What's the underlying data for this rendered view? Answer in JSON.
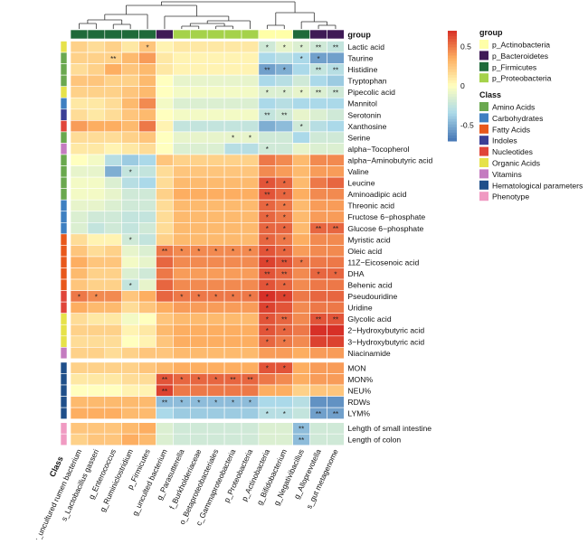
{
  "chart_data": {
    "type": "heatmap",
    "title": "",
    "columns": [
      "s_uncultured rumen bacterium",
      "s_Lactobacillus gasseri",
      "g_Enterococcus",
      "g_Ruminiclostridium",
      "p_Firmicutes",
      "g_unculted bacterium",
      "g_Parasutterella",
      "f_Burkholderiaceae",
      "o_Betaproteobacteriales",
      "c_Gammaproteobacteria",
      "p_Proteobacteria",
      "p_Actinobacteria",
      "g_Bifidobacterium",
      "g_Negativibacillus",
      "g_Alloprevotella",
      "s_gut metagenome"
    ],
    "column_groups": [
      "p_Firmicutes",
      "p_Firmicutes",
      "p_Firmicutes",
      "p_Firmicutes",
      "p_Firmicutes",
      "p_Bacteroidetes",
      "p_Proteobacteria",
      "p_Proteobacteria",
      "p_Proteobacteria",
      "p_Proteobacteria",
      "p_Proteobacteria",
      "p_Actinobacteria",
      "p_Actinobacteria",
      "p_Firmicutes",
      "p_Bacteroidetes",
      "p_Bacteroidetes"
    ],
    "rows": [
      "Lactic acid",
      "Taurine",
      "Histidine",
      "Tryptophan",
      "Pipecolic acid",
      "Mannitol",
      "Serotonin",
      "Xanthosine",
      "Serine",
      "alpha−Tocopherol",
      "alpha−Aminobutyric acid",
      "Valine",
      "Leucine",
      "Aminoadipic acid",
      "Threonic acid",
      "Fructose 6−phosphate",
      "Glucose 6−phosphate",
      "Myristic acid",
      "Oleic acid",
      "11Z−Eicosenoic acid",
      "DHA",
      "Behenic acid",
      "Pseudouridine",
      "Uridine",
      "Glycolic acid",
      "2−Hydroxybutyric acid",
      "3−Hydroxybutyric acid",
      "Niacinamide",
      "MON",
      "MON%",
      "NEU%",
      "RDWs",
      "LYM%",
      "Lehgth of small intestine",
      "Length of colon"
    ],
    "row_classes": [
      "Organic Acids",
      "Amino Acids",
      "Amino Acids",
      "Amino Acids",
      "Organic Acids",
      "Carbohydrates",
      "Indoles",
      "Nucleotides",
      "Amino Acids",
      "Vitamins",
      "Amino Acids",
      "Amino Acids",
      "Amino Acids",
      "Amino Acids",
      "Carbohydrates",
      "Carbohydrates",
      "Carbohydrates",
      "Fatty Acids",
      "Fatty Acids",
      "Fatty Acids",
      "Fatty Acids",
      "Fatty Acids",
      "Nucleotides",
      "Nucleotides",
      "Organic Acids",
      "Organic Acids",
      "Organic Acids",
      "Vitamins",
      "Hematological parameters",
      "Hematological parameters",
      "Hematological parameters",
      "Hematological parameters",
      "Hematological parameters",
      "Phenotype",
      "Phenotype"
    ],
    "values": [
      [
        0.2,
        0.15,
        0.2,
        0.1,
        0.25,
        0.05,
        0.1,
        0.1,
        0.1,
        0.1,
        0.1,
        -0.2,
        -0.1,
        -0.15,
        -0.2,
        -0.25
      ],
      [
        0.2,
        0.2,
        0.2,
        0.3,
        0.4,
        0.1,
        0.05,
        0.05,
        0.05,
        0.05,
        0.05,
        -0.35,
        -0.3,
        -0.35,
        -0.55,
        -0.55
      ],
      [
        0.15,
        0.2,
        0.35,
        0.25,
        0.3,
        0.1,
        0.05,
        0.05,
        0.05,
        0.05,
        0.05,
        -0.55,
        -0.5,
        -0.35,
        -0.25,
        -0.3
      ],
      [
        0.25,
        0.25,
        0.2,
        0.2,
        0.3,
        0.0,
        -0.1,
        -0.1,
        -0.1,
        -0.1,
        -0.1,
        -0.35,
        -0.3,
        -0.2,
        -0.35,
        -0.4
      ],
      [
        0.2,
        0.2,
        0.2,
        0.25,
        0.3,
        0.0,
        -0.05,
        -0.05,
        -0.05,
        -0.05,
        -0.05,
        -0.15,
        -0.15,
        -0.1,
        -0.15,
        -0.2
      ],
      [
        0.1,
        0.1,
        0.15,
        0.3,
        0.45,
        -0.05,
        -0.15,
        -0.15,
        -0.15,
        -0.15,
        -0.15,
        -0.35,
        -0.3,
        -0.35,
        -0.35,
        -0.35
      ],
      [
        0.15,
        0.1,
        0.15,
        0.25,
        0.3,
        0.0,
        -0.05,
        -0.05,
        -0.05,
        -0.05,
        -0.05,
        -0.25,
        -0.2,
        -0.1,
        -0.15,
        -0.2
      ],
      [
        0.4,
        0.35,
        0.35,
        0.3,
        0.5,
        0.05,
        -0.25,
        -0.25,
        -0.25,
        -0.25,
        -0.25,
        -0.5,
        -0.45,
        -0.2,
        -0.3,
        -0.35
      ],
      [
        0.15,
        0.15,
        0.15,
        0.2,
        0.25,
        0.0,
        -0.1,
        -0.1,
        -0.1,
        -0.1,
        -0.1,
        -0.2,
        -0.2,
        -0.35,
        -0.2,
        -0.2
      ],
      [
        0.1,
        0.1,
        0.05,
        0.1,
        0.15,
        0.0,
        -0.15,
        -0.15,
        -0.15,
        -0.3,
        -0.3,
        -0.2,
        -0.2,
        -0.1,
        -0.15,
        -0.15
      ],
      [
        0.0,
        -0.05,
        -0.3,
        -0.4,
        -0.35,
        0.25,
        0.2,
        0.2,
        0.2,
        0.2,
        0.2,
        0.5,
        0.45,
        0.3,
        0.45,
        0.45
      ],
      [
        -0.1,
        -0.1,
        -0.5,
        -0.25,
        -0.25,
        0.15,
        0.25,
        0.25,
        0.25,
        0.25,
        0.25,
        0.45,
        0.4,
        0.3,
        0.4,
        0.4
      ],
      [
        -0.05,
        -0.05,
        -0.15,
        -0.3,
        -0.35,
        0.15,
        0.3,
        0.3,
        0.3,
        0.3,
        0.3,
        0.6,
        0.55,
        0.3,
        0.5,
        0.55
      ],
      [
        -0.05,
        -0.05,
        -0.1,
        -0.2,
        -0.2,
        0.2,
        0.35,
        0.35,
        0.35,
        0.35,
        0.35,
        0.6,
        0.55,
        0.35,
        0.45,
        0.45
      ],
      [
        -0.1,
        -0.1,
        -0.15,
        -0.2,
        -0.2,
        0.15,
        0.3,
        0.3,
        0.3,
        0.3,
        0.3,
        0.55,
        0.5,
        0.3,
        0.4,
        0.4
      ],
      [
        -0.15,
        -0.2,
        -0.2,
        -0.25,
        -0.25,
        0.15,
        0.3,
        0.3,
        0.3,
        0.3,
        0.3,
        0.55,
        0.5,
        0.3,
        0.4,
        0.4
      ],
      [
        -0.15,
        -0.25,
        -0.2,
        -0.25,
        -0.2,
        0.15,
        0.3,
        0.3,
        0.3,
        0.3,
        0.3,
        0.55,
        0.55,
        0.3,
        0.55,
        0.55
      ],
      [
        0.15,
        0.05,
        0.05,
        -0.2,
        -0.25,
        0.2,
        0.3,
        0.3,
        0.3,
        0.3,
        0.3,
        0.55,
        0.5,
        0.35,
        0.45,
        0.45
      ],
      [
        0.25,
        0.15,
        0.2,
        -0.1,
        -0.15,
        0.5,
        0.45,
        0.45,
        0.45,
        0.45,
        0.45,
        0.6,
        0.55,
        0.4,
        0.45,
        0.45
      ],
      [
        0.35,
        0.25,
        0.25,
        -0.05,
        -0.1,
        0.55,
        0.45,
        0.45,
        0.45,
        0.45,
        0.45,
        0.65,
        0.6,
        0.5,
        0.5,
        0.5
      ],
      [
        0.3,
        0.2,
        0.2,
        -0.15,
        -0.2,
        0.5,
        0.4,
        0.4,
        0.4,
        0.4,
        0.4,
        0.6,
        0.55,
        0.45,
        0.55,
        0.55
      ],
      [
        0.25,
        0.2,
        0.2,
        -0.25,
        -0.1,
        0.55,
        0.45,
        0.45,
        0.45,
        0.45,
        0.45,
        0.6,
        0.55,
        0.45,
        0.5,
        0.5
      ],
      [
        0.5,
        0.45,
        0.45,
        0.25,
        0.35,
        0.55,
        0.5,
        0.5,
        0.5,
        0.5,
        0.5,
        0.7,
        0.65,
        0.5,
        0.55,
        0.55
      ],
      [
        0.35,
        0.3,
        0.3,
        0.15,
        0.25,
        0.35,
        0.4,
        0.4,
        0.4,
        0.4,
        0.4,
        0.65,
        0.6,
        0.45,
        0.5,
        0.5
      ],
      [
        0.15,
        0.1,
        0.1,
        -0.05,
        0.0,
        0.25,
        0.3,
        0.3,
        0.3,
        0.3,
        0.3,
        0.6,
        0.55,
        0.45,
        0.6,
        0.6
      ],
      [
        0.2,
        0.2,
        0.2,
        0.05,
        0.1,
        0.3,
        0.35,
        0.35,
        0.35,
        0.35,
        0.35,
        0.6,
        0.55,
        0.5,
        0.7,
        0.7
      ],
      [
        0.15,
        0.15,
        0.15,
        0.0,
        0.05,
        0.25,
        0.35,
        0.35,
        0.35,
        0.35,
        0.35,
        0.55,
        0.5,
        0.45,
        0.65,
        0.65
      ],
      [
        0.2,
        0.2,
        0.15,
        0.2,
        0.25,
        0.25,
        0.3,
        0.3,
        0.3,
        0.3,
        0.3,
        0.4,
        0.4,
        0.35,
        0.4,
        0.4
      ],
      [
        0.2,
        0.2,
        0.2,
        0.2,
        0.25,
        0.3,
        0.35,
        0.35,
        0.35,
        0.35,
        0.35,
        0.6,
        0.6,
        0.35,
        0.4,
        0.4
      ],
      [
        0.1,
        0.1,
        0.1,
        0.15,
        0.15,
        0.6,
        0.55,
        0.55,
        0.55,
        0.55,
        0.55,
        0.5,
        0.45,
        0.35,
        0.4,
        0.4
      ],
      [
        0.0,
        0.0,
        0.0,
        0.05,
        0.05,
        0.65,
        0.5,
        0.5,
        0.5,
        0.5,
        0.5,
        0.35,
        0.35,
        0.2,
        0.25,
        0.25
      ],
      [
        0.3,
        0.3,
        0.3,
        0.3,
        0.3,
        -0.45,
        -0.45,
        -0.45,
        -0.45,
        -0.45,
        -0.45,
        -0.35,
        -0.35,
        -0.3,
        -0.6,
        -0.6
      ],
      [
        0.35,
        0.35,
        0.35,
        0.3,
        0.3,
        -0.35,
        -0.4,
        -0.4,
        -0.4,
        -0.4,
        -0.4,
        -0.3,
        -0.3,
        -0.25,
        -0.55,
        -0.55
      ],
      [
        0.25,
        0.25,
        0.25,
        0.3,
        0.35,
        -0.15,
        -0.2,
        -0.2,
        -0.2,
        -0.2,
        -0.2,
        -0.15,
        -0.15,
        -0.45,
        -0.2,
        -0.2
      ],
      [
        0.2,
        0.25,
        0.25,
        0.35,
        0.3,
        -0.15,
        -0.2,
        -0.2,
        -0.2,
        -0.2,
        -0.2,
        -0.15,
        -0.15,
        -0.45,
        -0.2,
        -0.2
      ]
    ],
    "significance": [
      [
        "",
        "",
        "",
        "",
        "*",
        "",
        "",
        "",
        "",
        "",
        "",
        "*",
        "*",
        "*",
        "**",
        "**"
      ],
      [
        "",
        "",
        "**",
        "",
        "",
        "",
        "",
        "",
        "",
        "",
        "",
        "",
        "",
        "*",
        "*",
        ""
      ],
      [
        "",
        "",
        "",
        "",
        "",
        "",
        "",
        "",
        "",
        "",
        "",
        "**",
        "*",
        "",
        "**",
        "**"
      ],
      [
        "",
        "",
        "",
        "",
        "",
        "",
        "",
        "",
        "",
        "",
        "",
        "",
        "",
        "",
        "",
        ""
      ],
      [
        "",
        "",
        "",
        "",
        "",
        "",
        "",
        "",
        "",
        "",
        "",
        "*",
        "*",
        "*",
        "**",
        "**"
      ],
      [
        "",
        "",
        "",
        "",
        "",
        "",
        "",
        "",
        "",
        "",
        "",
        "",
        "",
        "",
        "",
        ""
      ],
      [
        "",
        "",
        "",
        "",
        "",
        "",
        "",
        "",
        "",
        "",
        "",
        "**",
        "**",
        "",
        "",
        ""
      ],
      [
        "",
        "",
        "",
        "",
        "",
        "",
        "",
        "",
        "",
        "",
        "",
        "",
        "",
        "*",
        "",
        ""
      ],
      [
        "",
        "",
        "",
        "",
        "",
        "",
        "",
        "",
        "",
        "*",
        "*",
        "",
        "",
        "",
        "",
        ""
      ],
      [
        "",
        "",
        "",
        "",
        "",
        "",
        "",
        "",
        "",
        "",
        "",
        "*",
        "",
        "",
        "",
        ""
      ],
      [
        "",
        "",
        "",
        "",
        "",
        "",
        "",
        "",
        "",
        "",
        "",
        "",
        "",
        "",
        "",
        ""
      ],
      [
        "",
        "",
        "",
        "*",
        "",
        "",
        "",
        "",
        "",
        "",
        "",
        "",
        "",
        "",
        "",
        ""
      ],
      [
        "",
        "",
        "",
        "",
        "",
        "",
        "",
        "",
        "",
        "",
        "",
        "*",
        "*",
        "",
        "",
        ""
      ],
      [
        "",
        "",
        "",
        "",
        "",
        "",
        "",
        "",
        "",
        "",
        "",
        "**",
        "*",
        "",
        "",
        ""
      ],
      [
        "",
        "",
        "",
        "",
        "",
        "",
        "",
        "",
        "",
        "",
        "",
        "*",
        "*",
        "",
        "",
        ""
      ],
      [
        "",
        "",
        "",
        "",
        "",
        "",
        "",
        "",
        "",
        "",
        "",
        "*",
        "*",
        "",
        "",
        ""
      ],
      [
        "",
        "",
        "",
        "",
        "",
        "",
        "",
        "",
        "",
        "",
        "",
        "*",
        "*",
        "",
        "**",
        "**"
      ],
      [
        "",
        "",
        "",
        "*",
        "",
        "",
        "",
        "",
        "",
        "",
        "",
        "*",
        "*",
        "",
        "",
        ""
      ],
      [
        "",
        "",
        "",
        "",
        "",
        "**",
        "*",
        "*",
        "*",
        "*",
        "*",
        "*",
        "*",
        "",
        "",
        ""
      ],
      [
        "",
        "",
        "",
        "",
        "",
        "",
        "",
        "",
        "",
        "",
        "",
        "*",
        "**",
        "*",
        "",
        ""
      ],
      [
        "",
        "",
        "",
        "",
        "",
        "",
        "",
        "",
        "",
        "",
        "",
        "**",
        "**",
        "",
        "*",
        "*"
      ],
      [
        "",
        "",
        "",
        "*",
        "",
        "",
        "",
        "",
        "",
        "",
        "",
        "*",
        "*",
        "",
        "",
        ""
      ],
      [
        "*",
        "*",
        "",
        "",
        "",
        "",
        "*",
        "*",
        "*",
        "*",
        "*",
        "*",
        "*",
        "",
        "",
        ""
      ],
      [
        "",
        "",
        "",
        "",
        "",
        "",
        "",
        "",
        "",
        "",
        "",
        "*",
        "",
        "",
        "",
        ""
      ],
      [
        "",
        "",
        "",
        "",
        "",
        "",
        "",
        "",
        "",
        "",
        "",
        "*",
        "**",
        "",
        "**",
        "**"
      ],
      [
        "",
        "",
        "",
        "",
        "",
        "",
        "",
        "",
        "",
        "",
        "",
        "*",
        "*",
        "",
        "",
        ""
      ],
      [
        "",
        "",
        "",
        "",
        "",
        "",
        "",
        "",
        "",
        "",
        "",
        "*",
        "*",
        "",
        "",
        ""
      ],
      [
        "",
        "",
        "",
        "",
        "",
        "",
        "",
        "",
        "",
        "",
        "",
        "",
        "",
        "",
        "",
        ""
      ],
      [
        "",
        "",
        "",
        "",
        "",
        "",
        "",
        "",
        "",
        "",
        "",
        "*",
        "*",
        "",
        "",
        ""
      ],
      [
        "",
        "",
        "",
        "",
        "",
        "**",
        "*",
        "*",
        "*",
        "**",
        "**",
        "",
        "",
        "",
        "",
        ""
      ],
      [
        "",
        "",
        "",
        "",
        "",
        "**",
        "",
        "",
        "",
        "",
        "",
        "",
        "",
        "",
        "",
        ""
      ],
      [
        "",
        "",
        "",
        "",
        "",
        "**",
        "*",
        "*",
        "*",
        "*",
        "*",
        "",
        "",
        "",
        "",
        ""
      ],
      [
        "",
        "",
        "",
        "",
        "",
        "",
        "",
        "",
        "",
        "",
        "",
        "*",
        "*",
        "",
        "**",
        "**"
      ],
      [
        "",
        "",
        "",
        "",
        "",
        "",
        "",
        "",
        "",
        "",
        "",
        "",
        "",
        "**",
        "",
        ""
      ],
      [
        "",
        "",
        "",
        "",
        "",
        "",
        "",
        "",
        "",
        "",
        "",
        "",
        "",
        "**",
        "",
        ""
      ]
    ],
    "color_scale": {
      "min": -0.7,
      "max": 0.7,
      "ticks": [
        0.5,
        0,
        -0.5
      ],
      "low": "#4575b4",
      "mid": "#ffffbf",
      "high": "#d73027"
    },
    "legend_group": {
      "title": "group",
      "entries": [
        {
          "label": "p_Actinobacteria",
          "color": "#ffffa8"
        },
        {
          "label": "p_Bacteroidetes",
          "color": "#3f1a56"
        },
        {
          "label": "p_Firmicutes",
          "color": "#1f6a3a"
        },
        {
          "label": "p_Proteobacteria",
          "color": "#a5d24a"
        }
      ]
    },
    "legend_class": {
      "title": "Class",
      "entries": [
        {
          "label": "Amino Acids",
          "color": "#6aa84f"
        },
        {
          "label": "Carbohydrates",
          "color": "#3f7fc1"
        },
        {
          "label": "Fatty Acids",
          "color": "#e8581c"
        },
        {
          "label": "Indoles",
          "color": "#3b3f96"
        },
        {
          "label": "Nucleotides",
          "color": "#e0453a"
        },
        {
          "label": "Organic Acids",
          "color": "#e6e24a"
        },
        {
          "label": "Vitamins",
          "color": "#c47bc0"
        },
        {
          "label": "Hematological parameters",
          "color": "#1f4f8a"
        },
        {
          "label": "Phenotype",
          "color": "#f09ac2"
        }
      ]
    },
    "row_annotation_title": "Class",
    "col_annotation_title": "group"
  }
}
